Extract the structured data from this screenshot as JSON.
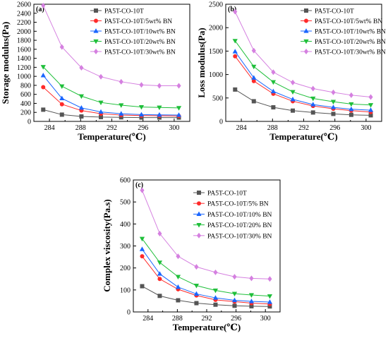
{
  "chart_data": [
    {
      "type": "line",
      "panel_label": "(a)",
      "xlabel": "Temperature(℃)",
      "ylabel": "Storage modulus(Pa)",
      "xlim": [
        282,
        302
      ],
      "ylim": [
        0,
        2600
      ],
      "xticks": [
        284,
        288,
        292,
        296,
        300
      ],
      "yticks": [
        0,
        200,
        400,
        600,
        800,
        1000,
        1200,
        1400,
        1600,
        1800,
        2000,
        2200,
        2400,
        2600
      ],
      "legend_position": "top-right",
      "x": [
        283.2,
        285.6,
        288.1,
        290.6,
        293.2,
        295.8,
        298.1,
        300.6
      ],
      "series": [
        {
          "name": "PA5T-CO-10T",
          "color": "#555555",
          "marker": "square",
          "values": [
            260,
            150,
            110,
            95,
            90,
            85,
            85,
            85
          ]
        },
        {
          "name": "PA5T-CO-10T/5wt% BN",
          "color": "#ff2a2a",
          "marker": "circle",
          "values": [
            760,
            380,
            240,
            170,
            140,
            130,
            125,
            120
          ]
        },
        {
          "name": "PA5T-CO-10T/10wt% BN",
          "color": "#1a66ff",
          "marker": "triangle-up",
          "values": [
            1020,
            510,
            300,
            210,
            170,
            150,
            145,
            140
          ]
        },
        {
          "name": "PA5T-CO-10T/20wt% BN",
          "color": "#1fbf3a",
          "marker": "triangle-down",
          "values": [
            1210,
            780,
            560,
            420,
            360,
            320,
            310,
            300
          ]
        },
        {
          "name": "PA5T-CO-10T/30wt% BN",
          "color": "#d580e0",
          "marker": "diamond",
          "values": [
            2570,
            1650,
            1190,
            990,
            880,
            810,
            790,
            790
          ]
        }
      ]
    },
    {
      "type": "line",
      "panel_label": "(b)",
      "xlabel": "Temperature(℃)",
      "ylabel": "Loss modulus(Pa)",
      "xlim": [
        282,
        302
      ],
      "ylim": [
        0,
        2500
      ],
      "xticks": [
        284,
        288,
        292,
        296,
        300
      ],
      "yticks": [
        0,
        500,
        1000,
        1500,
        2000,
        2500
      ],
      "legend_position": "top-right",
      "x": [
        283.2,
        285.6,
        288.1,
        290.6,
        293.2,
        295.8,
        298.1,
        300.6
      ],
      "series": [
        {
          "name": "PA5T-CO-10T",
          "color": "#555555",
          "marker": "square",
          "values": [
            680,
            430,
            300,
            230,
            190,
            160,
            140,
            130
          ]
        },
        {
          "name": "PA5T-CO-10T/5wt% BN",
          "color": "#ff2a2a",
          "marker": "circle",
          "values": [
            1390,
            860,
            590,
            430,
            330,
            270,
            230,
            200
          ]
        },
        {
          "name": "PA5T-CO-10T/10wt% BN",
          "color": "#1a66ff",
          "marker": "triangle-up",
          "values": [
            1490,
            930,
            640,
            470,
            360,
            300,
            260,
            240
          ]
        },
        {
          "name": "PA5T-CO-10T/20wt% BN",
          "color": "#1fbf3a",
          "marker": "triangle-down",
          "values": [
            1720,
            1170,
            840,
            630,
            490,
            420,
            370,
            350
          ]
        },
        {
          "name": "PA5T-CO-10T/30wt% BN",
          "color": "#d580e0",
          "marker": "diamond",
          "values": [
            2340,
            1510,
            1050,
            830,
            700,
            620,
            560,
            520
          ]
        }
      ]
    },
    {
      "type": "line",
      "panel_label": "(c)",
      "xlabel": "Temperature(℃)",
      "ylabel": "Complex viscosity(Pa.s)",
      "xlim": [
        282,
        302
      ],
      "ylim": [
        0,
        600
      ],
      "xticks": [
        284,
        288,
        292,
        296,
        300
      ],
      "yticks": [
        0,
        100,
        200,
        300,
        400,
        500,
        600
      ],
      "legend_position": "top-right",
      "x": [
        283.2,
        285.6,
        288.1,
        290.6,
        293.2,
        295.8,
        298.1,
        300.6
      ],
      "series": [
        {
          "name": "PA5T-CO-10T",
          "color": "#555555",
          "marker": "square",
          "values": [
            117,
            73,
            53,
            40,
            33,
            28,
            26,
            25
          ]
        },
        {
          "name": "PA5T-CO-10T/5% BN",
          "color": "#ff2a2a",
          "marker": "circle",
          "values": [
            253,
            150,
            103,
            75,
            55,
            47,
            40,
            36
          ]
        },
        {
          "name": "PA5T-CO-10T/10% BN",
          "color": "#1a66ff",
          "marker": "triangle-up",
          "values": [
            285,
            173,
            113,
            82,
            64,
            53,
            48,
            45
          ]
        },
        {
          "name": "PA5T-CO-10T/20% BN",
          "color": "#1fbf3a",
          "marker": "triangle-down",
          "values": [
            333,
            225,
            160,
            120,
            98,
            83,
            77,
            72
          ]
        },
        {
          "name": "PA5T-CO-10T/30% BN",
          "color": "#d580e0",
          "marker": "diamond",
          "values": [
            553,
            356,
            253,
            205,
            180,
            160,
            153,
            150
          ]
        }
      ]
    }
  ]
}
